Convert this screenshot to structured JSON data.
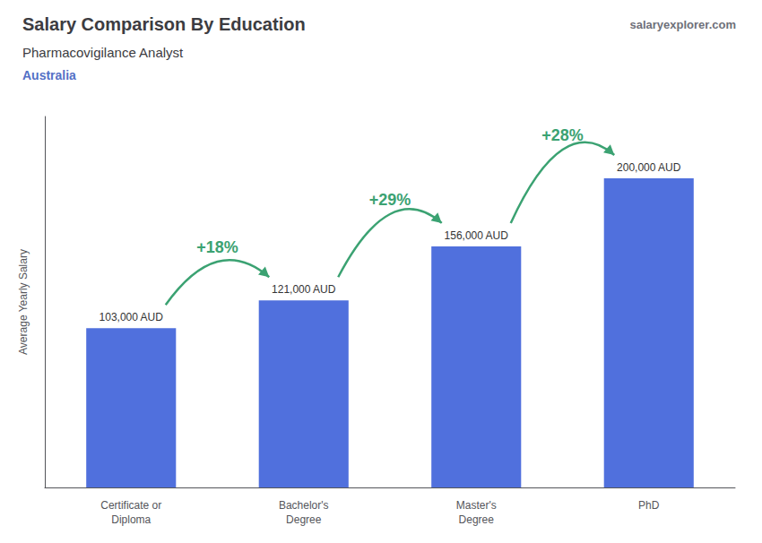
{
  "chart_data": {
    "type": "bar",
    "title": "Salary Comparison By Education",
    "subtitle": "Pharmacovigilance Analyst",
    "annotations": [
      "Australia",
      "salaryexplorer.com"
    ],
    "ylabel": "Average Yearly Salary",
    "categories": [
      "Certificate or\nDiploma",
      "Bachelor's\nDegree",
      "Master's\nDegree",
      "PhD"
    ],
    "values": [
      103000,
      121000,
      156000,
      200000
    ],
    "value_labels": [
      "103,000 AUD",
      "121,000 AUD",
      "156,000 AUD",
      "200,000 AUD"
    ],
    "change_labels": [
      "+18%",
      "+29%",
      "+28%"
    ],
    "ylim": [
      0,
      240000
    ],
    "grid": false,
    "data_labels": true,
    "tick_labels": "x"
  }
}
